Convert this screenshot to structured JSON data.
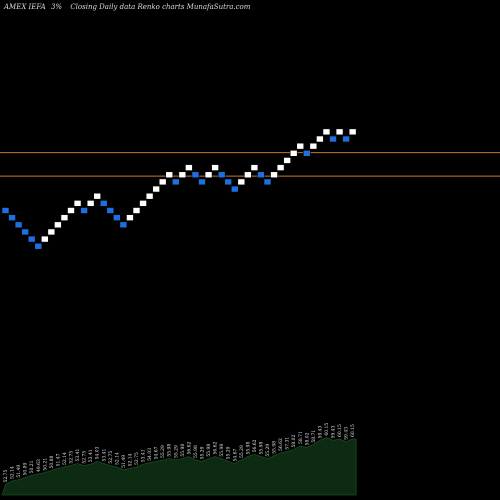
{
  "header": {
    "symbol": "AMEX  IEFA",
    "brick_size": "3%",
    "description": "Closing Daily data  Renko  charts MunafaSutra.com"
  },
  "colors": {
    "background": "#000000",
    "up_brick": "#ffffff",
    "down_brick": "#1f6fe0",
    "level_line": "#c8782a",
    "volume_fill": "#0d2a12",
    "volume_stroke": "#1c4a22",
    "label_text": "#e6e6e6"
  },
  "chart_data": {
    "type": "renko",
    "title": "AMEX  IEFA",
    "subtitle": "3%  Closing Daily data  Renko  charts MunafaSutra.com",
    "bricks": [
      {
        "dir": "down",
        "level": 27
      },
      {
        "dir": "down",
        "level": 26
      },
      {
        "dir": "down",
        "level": 25
      },
      {
        "dir": "down",
        "level": 24
      },
      {
        "dir": "down",
        "level": 23
      },
      {
        "dir": "down",
        "level": 22
      },
      {
        "dir": "up",
        "level": 23
      },
      {
        "dir": "up",
        "level": 24
      },
      {
        "dir": "up",
        "level": 25
      },
      {
        "dir": "up",
        "level": 26
      },
      {
        "dir": "up",
        "level": 27
      },
      {
        "dir": "up",
        "level": 28
      },
      {
        "dir": "down",
        "level": 27
      },
      {
        "dir": "up",
        "level": 28
      },
      {
        "dir": "up",
        "level": 29
      },
      {
        "dir": "down",
        "level": 28
      },
      {
        "dir": "down",
        "level": 27
      },
      {
        "dir": "down",
        "level": 26
      },
      {
        "dir": "down",
        "level": 25
      },
      {
        "dir": "up",
        "level": 26
      },
      {
        "dir": "up",
        "level": 27
      },
      {
        "dir": "up",
        "level": 28
      },
      {
        "dir": "up",
        "level": 29
      },
      {
        "dir": "up",
        "level": 30
      },
      {
        "dir": "up",
        "level": 31
      },
      {
        "dir": "up",
        "level": 32
      },
      {
        "dir": "down",
        "level": 31
      },
      {
        "dir": "up",
        "level": 32
      },
      {
        "dir": "up",
        "level": 33
      },
      {
        "dir": "down",
        "level": 32
      },
      {
        "dir": "down",
        "level": 31
      },
      {
        "dir": "up",
        "level": 32
      },
      {
        "dir": "up",
        "level": 33
      },
      {
        "dir": "down",
        "level": 32
      },
      {
        "dir": "down",
        "level": 31
      },
      {
        "dir": "down",
        "level": 30
      },
      {
        "dir": "up",
        "level": 31
      },
      {
        "dir": "up",
        "level": 32
      },
      {
        "dir": "up",
        "level": 33
      },
      {
        "dir": "down",
        "level": 32
      },
      {
        "dir": "down",
        "level": 31
      },
      {
        "dir": "up",
        "level": 32
      },
      {
        "dir": "up",
        "level": 33
      },
      {
        "dir": "up",
        "level": 34
      },
      {
        "dir": "up",
        "level": 35
      },
      {
        "dir": "up",
        "level": 36
      },
      {
        "dir": "down",
        "level": 35
      },
      {
        "dir": "up",
        "level": 36
      },
      {
        "dir": "up",
        "level": 37
      },
      {
        "dir": "up",
        "level": 38
      },
      {
        "dir": "down",
        "level": 37
      },
      {
        "dir": "up",
        "level": 38
      },
      {
        "dir": "down",
        "level": 37
      },
      {
        "dir": "up",
        "level": 38
      }
    ],
    "horizontal_levels": [
      35.1,
      31.8
    ],
    "volume": [
      0.15,
      0.2,
      0.22,
      0.25,
      0.28,
      0.3,
      0.32,
      0.35,
      0.38,
      0.4,
      0.42,
      0.45,
      0.42,
      0.44,
      0.48,
      0.45,
      0.42,
      0.4,
      0.36,
      0.38,
      0.4,
      0.44,
      0.46,
      0.48,
      0.5,
      0.52,
      0.5,
      0.52,
      0.55,
      0.5,
      0.48,
      0.52,
      0.55,
      0.52,
      0.48,
      0.45,
      0.5,
      0.55,
      0.58,
      0.55,
      0.52,
      0.56,
      0.6,
      0.62,
      0.65,
      0.7,
      0.68,
      0.72,
      0.78,
      0.82,
      0.78,
      0.8,
      0.76,
      0.8
    ],
    "volume_labels": [
      "52.75",
      "52.14",
      "51.49",
      "50.89",
      "50.21",
      "49.63",
      "50.21",
      "50.88",
      "51.47",
      "52.14",
      "52.75",
      "53.41",
      "52.75",
      "53.41",
      "54.03",
      "53.41",
      "52.75",
      "52.14",
      "51.49",
      "52.14",
      "52.75",
      "53.41",
      "54.03",
      "54.67",
      "55.29",
      "55.98",
      "55.29",
      "55.98",
      "56.62",
      "55.98",
      "55.29",
      "55.98",
      "56.62",
      "55.98",
      "55.29",
      "54.67",
      "55.29",
      "55.98",
      "56.62",
      "55.98",
      "55.29",
      "55.98",
      "56.62",
      "57.31",
      "58.02",
      "58.71",
      "58.02",
      "58.71",
      "59.43",
      "60.15",
      "59.43",
      "60.15",
      "59.43",
      "60.15"
    ]
  }
}
